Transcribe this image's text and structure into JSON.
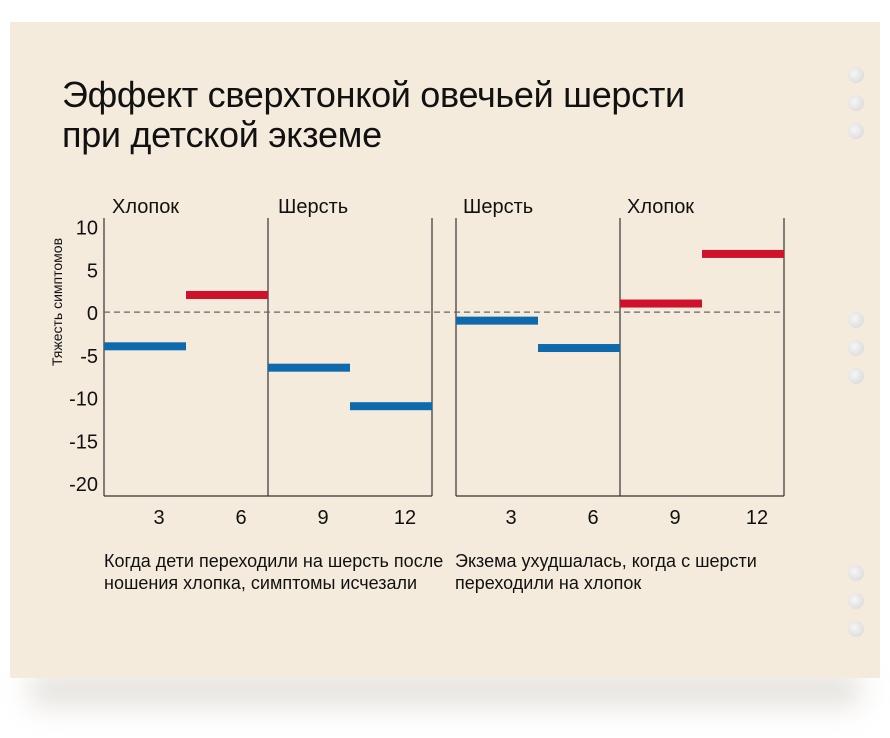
{
  "title_lines": [
    "Эффект сверхтонкой овечьей шерсти",
    "при детской экземе"
  ],
  "colors": {
    "background": "#f4ebdc",
    "cotton": "#d0112b",
    "wool": "#0f6aad",
    "axis": "#333333",
    "zero_line": "#666666"
  },
  "chart_data": [
    {
      "type": "bar",
      "ylabel": "Тяжесть симптомов",
      "ylim": [
        -21.5,
        11
      ],
      "yticks": [
        10,
        5,
        0,
        -5,
        -10,
        -15,
        -20
      ],
      "xticks": [
        "3",
        "6",
        "9",
        "12"
      ],
      "phase_labels": [
        "Хлопок",
        "Шерсть"
      ],
      "series": [
        {
          "name": "Хлопок",
          "color": "#d0112b",
          "values": [
            null,
            2,
            null,
            null
          ]
        },
        {
          "name": "Шерсть",
          "color": "#0f6aad",
          "values": [
            -4,
            null,
            -6.5,
            -11
          ]
        }
      ],
      "caption": "Когда дети переходили на шерсть после ношения хлопка, симптомы исчезали"
    },
    {
      "type": "bar",
      "ylim": [
        -21.5,
        11
      ],
      "xticks": [
        "3",
        "6",
        "9",
        "12"
      ],
      "phase_labels": [
        "Шерсть",
        "Хлопок"
      ],
      "series": [
        {
          "name": "Шерсть",
          "color": "#0f6aad",
          "values": [
            -1,
            -4.2,
            null,
            null
          ]
        },
        {
          "name": "Хлопок",
          "color": "#d0112b",
          "values": [
            null,
            null,
            1,
            6.8
          ]
        }
      ],
      "caption": "Экзема ухудшалась, когда с шерсти переходили на хлопок"
    }
  ]
}
